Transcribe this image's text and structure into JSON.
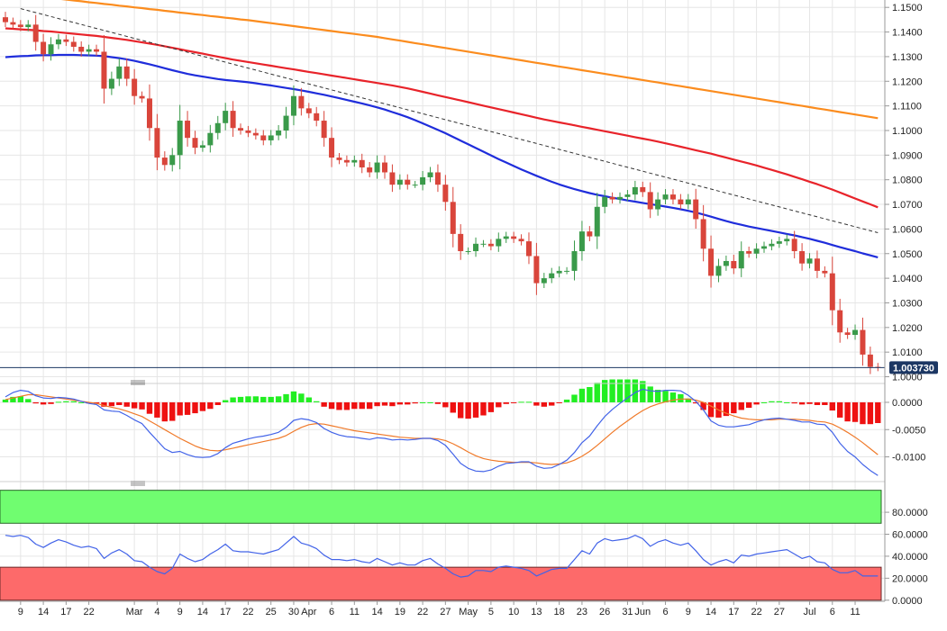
{
  "colors": {
    "bull": "#3a9a4a",
    "bear": "#d9453b",
    "sma100": "#e8232a",
    "sma200": "#fb8c1e",
    "sma55": "#1f2ddb",
    "hist_pos": "#22ee22",
    "hist_neg": "#ee1111",
    "macd_line": "#4263e8",
    "signal_line": "#f07a2a",
    "rsi_line": "#4263e8",
    "overbought": "#70fd70",
    "oversold": "#fd6a6a",
    "grid": "#e6e6e6",
    "price_tag": "#1c3763",
    "trendline": "#333333"
  },
  "chart_data": [
    {
      "type": "candlestick",
      "pair": "EUR/USD daily",
      "ylim": [
        0.998,
        1.153
      ],
      "ytick_values": [
        1.15,
        1.14,
        1.13,
        1.12,
        1.11,
        1.1,
        1.09,
        1.08,
        1.07,
        1.06,
        1.05,
        1.04,
        1.03,
        1.02,
        1.01,
        1.0
      ],
      "ytick_labels": [
        "1.1500",
        "1.1400",
        "1.1300",
        "1.1200",
        "1.1100",
        "1.1000",
        "1.0900",
        "1.0800",
        "1.0700",
        "1.0600",
        "1.0500",
        "1.0400",
        "1.0300",
        "1.0200",
        "1.0100",
        "1.0000"
      ],
      "last_price": 1.00373,
      "last_price_label": "1.003730",
      "xtick_labels": [
        {
          "i": 2,
          "label": "9"
        },
        {
          "i": 5,
          "label": "14"
        },
        {
          "i": 8,
          "label": "17"
        },
        {
          "i": 11,
          "label": "22"
        },
        {
          "i": 17,
          "label": "Mar"
        },
        {
          "i": 20,
          "label": "4"
        },
        {
          "i": 23,
          "label": "9"
        },
        {
          "i": 26,
          "label": "14"
        },
        {
          "i": 29,
          "label": "17"
        },
        {
          "i": 32,
          "label": "22"
        },
        {
          "i": 35,
          "label": "25"
        },
        {
          "i": 38,
          "label": "30"
        },
        {
          "i": 40,
          "label": "Apr"
        },
        {
          "i": 43,
          "label": "6"
        },
        {
          "i": 46,
          "label": "11"
        },
        {
          "i": 49,
          "label": "14"
        },
        {
          "i": 52,
          "label": "19"
        },
        {
          "i": 55,
          "label": "22"
        },
        {
          "i": 58,
          "label": "27"
        },
        {
          "i": 61,
          "label": "May"
        },
        {
          "i": 64,
          "label": "5"
        },
        {
          "i": 67,
          "label": "10"
        },
        {
          "i": 70,
          "label": "13"
        },
        {
          "i": 73,
          "label": "18"
        },
        {
          "i": 76,
          "label": "23"
        },
        {
          "i": 79,
          "label": "26"
        },
        {
          "i": 82,
          "label": "31"
        },
        {
          "i": 84,
          "label": "Jun"
        },
        {
          "i": 87,
          "label": "6"
        },
        {
          "i": 90,
          "label": "9"
        },
        {
          "i": 93,
          "label": "14"
        },
        {
          "i": 96,
          "label": "17"
        },
        {
          "i": 99,
          "label": "22"
        },
        {
          "i": 102,
          "label": "27"
        },
        {
          "i": 106,
          "label": "Jul"
        },
        {
          "i": 109,
          "label": "6"
        },
        {
          "i": 112,
          "label": "11"
        }
      ],
      "close": [
        1.144,
        1.143,
        1.142,
        1.143,
        1.136,
        1.131,
        1.135,
        1.137,
        1.136,
        1.134,
        1.132,
        1.133,
        1.132,
        1.117,
        1.121,
        1.126,
        1.121,
        1.114,
        1.113,
        1.101,
        1.089,
        1.086,
        1.09,
        1.104,
        1.097,
        1.093,
        1.094,
        1.099,
        1.103,
        1.108,
        1.101,
        1.1,
        1.099,
        1.098,
        1.096,
        1.098,
        1.1,
        1.106,
        1.114,
        1.109,
        1.107,
        1.104,
        1.097,
        1.089,
        1.088,
        1.087,
        1.088,
        1.085,
        1.083,
        1.087,
        1.083,
        1.078,
        1.08,
        1.078,
        1.078,
        1.081,
        1.083,
        1.078,
        1.071,
        1.058,
        1.051,
        1.051,
        1.054,
        1.054,
        1.053,
        1.056,
        1.057,
        1.056,
        1.055,
        1.049,
        1.038,
        1.04,
        1.042,
        1.043,
        1.043,
        1.051,
        1.059,
        1.057,
        1.069,
        1.073,
        1.072,
        1.073,
        1.074,
        1.077,
        1.075,
        1.068,
        1.072,
        1.074,
        1.072,
        1.07,
        1.072,
        1.064,
        1.052,
        1.041,
        1.045,
        1.047,
        1.044,
        1.051,
        1.05,
        1.052,
        1.053,
        1.054,
        1.055,
        1.056,
        1.051,
        1.046,
        1.048,
        1.043,
        1.042,
        1.027,
        1.018,
        1.017,
        1.019,
        1.009,
        1.004,
        1.0037
      ],
      "sma55": [
        1.1298,
        1.13,
        1.1302,
        1.1303,
        1.1305,
        1.1306,
        1.1306,
        1.1307,
        1.1307,
        1.1307,
        1.1306,
        1.1305,
        1.1304,
        1.1302,
        1.1298,
        1.1294,
        1.1289,
        1.1283,
        1.1276,
        1.1269,
        1.1261,
        1.1253,
        1.1245,
        1.1237,
        1.123,
        1.1224,
        1.1219,
        1.1214,
        1.1209,
        1.1205,
        1.1202,
        1.1199,
        1.1196,
        1.1192,
        1.1187,
        1.1183,
        1.1178,
        1.1173,
        1.1168,
        1.1163,
        1.1157,
        1.1151,
        1.1145,
        1.1138,
        1.1131,
        1.1124,
        1.1117,
        1.111,
        1.1102,
        1.1094,
        1.1085,
        1.1075,
        1.1065,
        1.1054,
        1.1042,
        1.1029,
        1.1016,
        1.1003,
        1.0989,
        1.0974,
        1.0959,
        1.0944,
        1.0929,
        1.0914,
        1.0899,
        1.0884,
        1.087,
        1.0856,
        1.0842,
        1.0829,
        1.0816,
        1.0804,
        1.0792,
        1.0781,
        1.0771,
        1.0762,
        1.0754,
        1.0746,
        1.0739,
        1.0733,
        1.0727,
        1.0722,
        1.0716,
        1.0711,
        1.0706,
        1.0701,
        1.0696,
        1.0691,
        1.0686,
        1.068,
        1.0674,
        1.0667,
        1.0659,
        1.065,
        1.0641,
        1.0632,
        1.0624,
        1.0617,
        1.061,
        1.0604,
        1.0598,
        1.0592,
        1.0586,
        1.058,
        1.0574,
        1.0567,
        1.056,
        1.0552,
        1.0544,
        1.0535,
        1.0526,
        1.0518,
        1.051,
        1.0501,
        1.0493,
        1.0485
      ],
      "sma100": [
        1.1415,
        1.1413,
        1.1411,
        1.1409,
        1.1407,
        1.1404,
        1.1402,
        1.1399,
        1.1396,
        1.1393,
        1.139,
        1.1387,
        1.1384,
        1.138,
        1.1376,
        1.1372,
        1.1368,
        1.1363,
        1.1358,
        1.1353,
        1.1348,
        1.1342,
        1.1336,
        1.133,
        1.1324,
        1.1318,
        1.1312,
        1.1306,
        1.13,
        1.1294,
        1.1288,
        1.1283,
        1.1278,
        1.1273,
        1.1268,
        1.1263,
        1.1258,
        1.1253,
        1.1248,
        1.1243,
        1.1238,
        1.1233,
        1.1228,
        1.1223,
        1.1218,
        1.1213,
        1.1208,
        1.1203,
        1.1198,
        1.1193,
        1.1188,
        1.1183,
        1.1177,
        1.1171,
        1.1164,
        1.1157,
        1.115,
        1.1143,
        1.1136,
        1.1129,
        1.1122,
        1.1115,
        1.1108,
        1.1101,
        1.1094,
        1.1087,
        1.108,
        1.1073,
        1.1066,
        1.1059,
        1.1052,
        1.1045,
        1.1039,
        1.1033,
        1.1027,
        1.1021,
        1.1015,
        1.1009,
        1.1003,
        1.0997,
        1.0991,
        1.0985,
        1.0979,
        1.0973,
        1.0967,
        1.0961,
        1.0955,
        1.0948,
        1.0941,
        1.0934,
        1.0927,
        1.092,
        1.0913,
        1.0906,
        1.0898,
        1.089,
        1.0882,
        1.0874,
        1.0866,
        1.0858,
        1.0849,
        1.084,
        1.0831,
        1.0822,
        1.0812,
        1.0802,
        1.0792,
        1.0782,
        1.0771,
        1.076,
        1.0748,
        1.0736,
        1.0724,
        1.0712,
        1.07,
        1.0688
      ],
      "sma200": [
        1.156,
        1.1556,
        1.1553,
        1.1549,
        1.1546,
        1.1542,
        1.1539,
        1.1535,
        1.1532,
        1.1528,
        1.1525,
        1.1521,
        1.1518,
        1.1514,
        1.1511,
        1.1507,
        1.1504,
        1.15,
        1.1497,
        1.1493,
        1.149,
        1.1486,
        1.1483,
        1.1479,
        1.1476,
        1.1472,
        1.1469,
        1.1465,
        1.1462,
        1.1458,
        1.1455,
        1.1451,
        1.1448,
        1.1444,
        1.144,
        1.1436,
        1.1432,
        1.1428,
        1.1424,
        1.142,
        1.1416,
        1.1412,
        1.1408,
        1.1404,
        1.14,
        1.1396,
        1.1392,
        1.1388,
        1.1384,
        1.138,
        1.1375,
        1.137,
        1.1365,
        1.136,
        1.1355,
        1.135,
        1.1345,
        1.134,
        1.1335,
        1.133,
        1.1325,
        1.132,
        1.1315,
        1.131,
        1.1305,
        1.13,
        1.1295,
        1.129,
        1.1285,
        1.128,
        1.1275,
        1.127,
        1.1265,
        1.126,
        1.1255,
        1.125,
        1.1245,
        1.124,
        1.1235,
        1.123,
        1.1225,
        1.122,
        1.1215,
        1.121,
        1.1205,
        1.12,
        1.1195,
        1.119,
        1.1185,
        1.118,
        1.1175,
        1.117,
        1.1165,
        1.116,
        1.1155,
        1.115,
        1.1145,
        1.114,
        1.1135,
        1.113,
        1.1125,
        1.112,
        1.1115,
        1.111,
        1.1105,
        1.11,
        1.1095,
        1.109,
        1.1085,
        1.108,
        1.1075,
        1.107,
        1.1065,
        1.106,
        1.1055,
        1.105
      ],
      "trendline": [
        [
          2,
          1.1495
        ],
        [
          115,
          1.0585
        ]
      ]
    },
    {
      "type": "macd",
      "ylim": [
        -0.0142,
        0.0028
      ],
      "ytick_values": [
        0.0,
        -0.005,
        -0.01
      ],
      "ytick_labels": [
        "0.0000",
        "-0.0050",
        "-0.0100"
      ],
      "macd": [
        0.001,
        0.0018,
        0.0022,
        0.002,
        0.0012,
        0.0008,
        0.0007,
        0.0009,
        0.0008,
        0.0006,
        0.0002,
        -0.0002,
        -0.0004,
        -0.0014,
        -0.0016,
        -0.0017,
        -0.0024,
        -0.0032,
        -0.0039,
        -0.0055,
        -0.007,
        -0.0085,
        -0.0092,
        -0.009,
        -0.0096,
        -0.01,
        -0.0101,
        -0.01,
        -0.0094,
        -0.0083,
        -0.0075,
        -0.0071,
        -0.0067,
        -0.0064,
        -0.0062,
        -0.0059,
        -0.0055,
        -0.0046,
        -0.0033,
        -0.003,
        -0.0032,
        -0.0037,
        -0.0048,
        -0.0055,
        -0.006,
        -0.0063,
        -0.0064,
        -0.0066,
        -0.0068,
        -0.0065,
        -0.0066,
        -0.0069,
        -0.0068,
        -0.0069,
        -0.0068,
        -0.0066,
        -0.0066,
        -0.007,
        -0.0079,
        -0.0095,
        -0.0112,
        -0.0121,
        -0.0126,
        -0.0127,
        -0.0124,
        -0.0117,
        -0.0112,
        -0.0111,
        -0.0109,
        -0.0109,
        -0.0117,
        -0.0121,
        -0.012,
        -0.0114,
        -0.0106,
        -0.0092,
        -0.0074,
        -0.0062,
        -0.0043,
        -0.0026,
        -0.0013,
        -0.0002,
        0.0008,
        0.0018,
        0.0024,
        0.0021,
        0.002,
        0.0022,
        0.0022,
        0.0021,
        0.0013,
        0.0002,
        -0.0014,
        -0.0034,
        -0.0042,
        -0.0045,
        -0.0045,
        -0.0043,
        -0.0041,
        -0.0036,
        -0.0032,
        -0.003,
        -0.0029,
        -0.0031,
        -0.0033,
        -0.0036,
        -0.0036,
        -0.004,
        -0.0041,
        -0.0055,
        -0.0075,
        -0.009,
        -0.01,
        -0.0114,
        -0.0125,
        -0.0134
      ],
      "signal": [
        0.0005,
        0.0008,
        0.0011,
        0.0014,
        0.0014,
        0.0012,
        0.001,
        0.0008,
        0.0006,
        0.0004,
        0.0002,
        0.0,
        -0.0002,
        -0.0006,
        -0.0009,
        -0.0012,
        -0.0016,
        -0.0021,
        -0.0026,
        -0.0034,
        -0.0042,
        -0.005,
        -0.0058,
        -0.0066,
        -0.0073,
        -0.008,
        -0.0085,
        -0.0088,
        -0.0089,
        -0.0087,
        -0.0084,
        -0.0081,
        -0.0078,
        -0.0075,
        -0.0072,
        -0.0069,
        -0.0066,
        -0.0061,
        -0.0053,
        -0.0046,
        -0.0041,
        -0.0039,
        -0.004,
        -0.0043,
        -0.0046,
        -0.0049,
        -0.0052,
        -0.0054,
        -0.0056,
        -0.0058,
        -0.006,
        -0.0062,
        -0.0064,
        -0.0065,
        -0.0066,
        -0.0066,
        -0.0066,
        -0.0067,
        -0.007,
        -0.0076,
        -0.0083,
        -0.0091,
        -0.0098,
        -0.0103,
        -0.0106,
        -0.0108,
        -0.0109,
        -0.011,
        -0.011,
        -0.011,
        -0.0111,
        -0.0113,
        -0.0114,
        -0.0113,
        -0.0111,
        -0.0106,
        -0.0099,
        -0.009,
        -0.0079,
        -0.0067,
        -0.0055,
        -0.0044,
        -0.0034,
        -0.0024,
        -0.0015,
        -0.0008,
        -0.0003,
        0.0001,
        0.0004,
        0.0006,
        0.0006,
        0.0004,
        0.0,
        -0.0007,
        -0.0014,
        -0.002,
        -0.0025,
        -0.0029,
        -0.0031,
        -0.0032,
        -0.0032,
        -0.0032,
        -0.0031,
        -0.0031,
        -0.0031,
        -0.0032,
        -0.0033,
        -0.0035,
        -0.0036,
        -0.004,
        -0.0047,
        -0.0055,
        -0.0064,
        -0.0074,
        -0.0085,
        -0.0096
      ]
    },
    {
      "type": "rsi",
      "ylim": [
        -1,
        103
      ],
      "ytick_values": [
        80,
        60,
        40,
        20,
        0
      ],
      "ytick_labels": [
        "80.0000",
        "60.0000",
        "40.0000",
        "20.0000",
        "0.0000"
      ],
      "overbought": 70,
      "oversold": 30,
      "values": [
        59,
        58,
        59,
        57,
        51,
        48,
        52,
        55,
        53,
        50,
        48,
        49,
        47,
        38,
        43,
        46,
        42,
        36,
        35,
        30,
        26,
        24,
        29,
        42,
        38,
        35,
        37,
        42,
        46,
        51,
        45,
        44,
        44,
        43,
        42,
        44,
        46,
        52,
        58,
        52,
        50,
        47,
        41,
        37,
        37,
        36,
        37,
        35,
        34,
        38,
        35,
        32,
        34,
        32,
        32,
        36,
        38,
        33,
        29,
        24,
        21,
        22,
        27,
        27,
        26,
        30,
        31,
        30,
        29,
        27,
        22,
        25,
        28,
        29,
        29,
        37,
        45,
        42,
        52,
        56,
        54,
        55,
        56,
        59,
        56,
        49,
        53,
        55,
        52,
        50,
        52,
        45,
        37,
        32,
        35,
        37,
        34,
        41,
        40,
        42,
        43,
        44,
        45,
        46,
        42,
        38,
        40,
        35,
        34,
        28,
        25,
        25,
        27,
        22,
        22,
        22
      ]
    }
  ]
}
